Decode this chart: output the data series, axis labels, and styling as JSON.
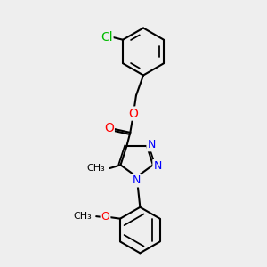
{
  "background_color": "#eeeeee",
  "bond_color": "#000000",
  "bond_width": 1.5,
  "atom_colors": {
    "Cl": "#00bb00",
    "O": "#ff0000",
    "N": "#0000ff",
    "C": "#000000"
  },
  "font_size": 9,
  "figsize": [
    3.0,
    3.0
  ],
  "dpi": 100
}
